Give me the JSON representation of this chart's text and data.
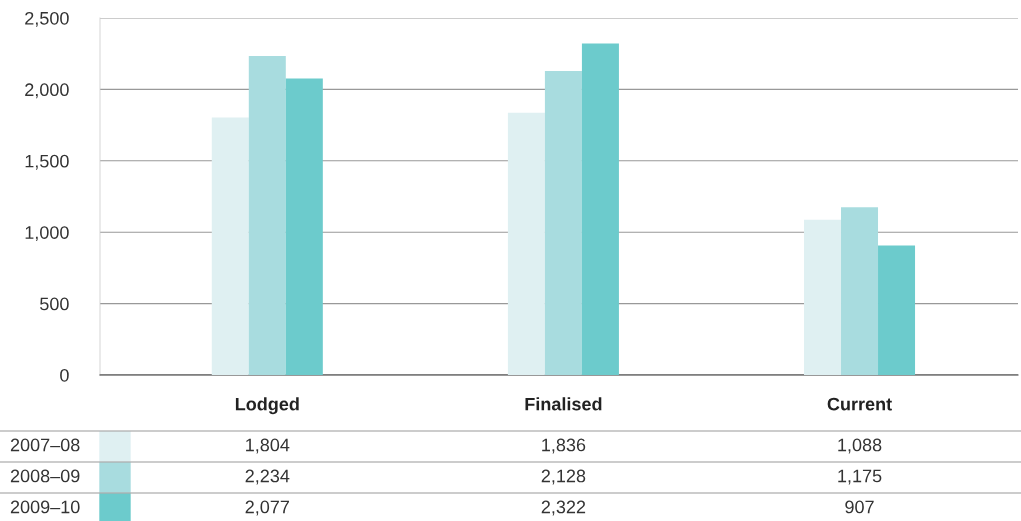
{
  "chart_data": {
    "type": "bar",
    "categories": [
      "Lodged",
      "Finalised",
      "Current"
    ],
    "series": [
      {
        "name": "2007–08",
        "color": "#dff0f2",
        "values": [
          1804,
          1836,
          1088
        ],
        "value_labels": [
          "1,804",
          "1,836",
          "1,088"
        ]
      },
      {
        "name": "2008–09",
        "color": "#a8dcdf",
        "values": [
          2234,
          2128,
          1175
        ],
        "value_labels": [
          "2,234",
          "2,128",
          "1,175"
        ]
      },
      {
        "name": "2009–10",
        "color": "#6ccbcc",
        "values": [
          2077,
          2322,
          907
        ],
        "value_labels": [
          "2,077",
          "2,322",
          "907"
        ]
      }
    ],
    "ylim": [
      0,
      2500
    ],
    "yticks": [
      {
        "value": 0,
        "label": "0"
      },
      {
        "value": 500,
        "label": "500"
      },
      {
        "value": 1000,
        "label": "1,000"
      },
      {
        "value": 1500,
        "label": "1,500"
      },
      {
        "value": 2000,
        "label": "2,000"
      },
      {
        "value": 2500,
        "label": "2,500"
      }
    ],
    "grid": "y",
    "legend": "bottom"
  }
}
